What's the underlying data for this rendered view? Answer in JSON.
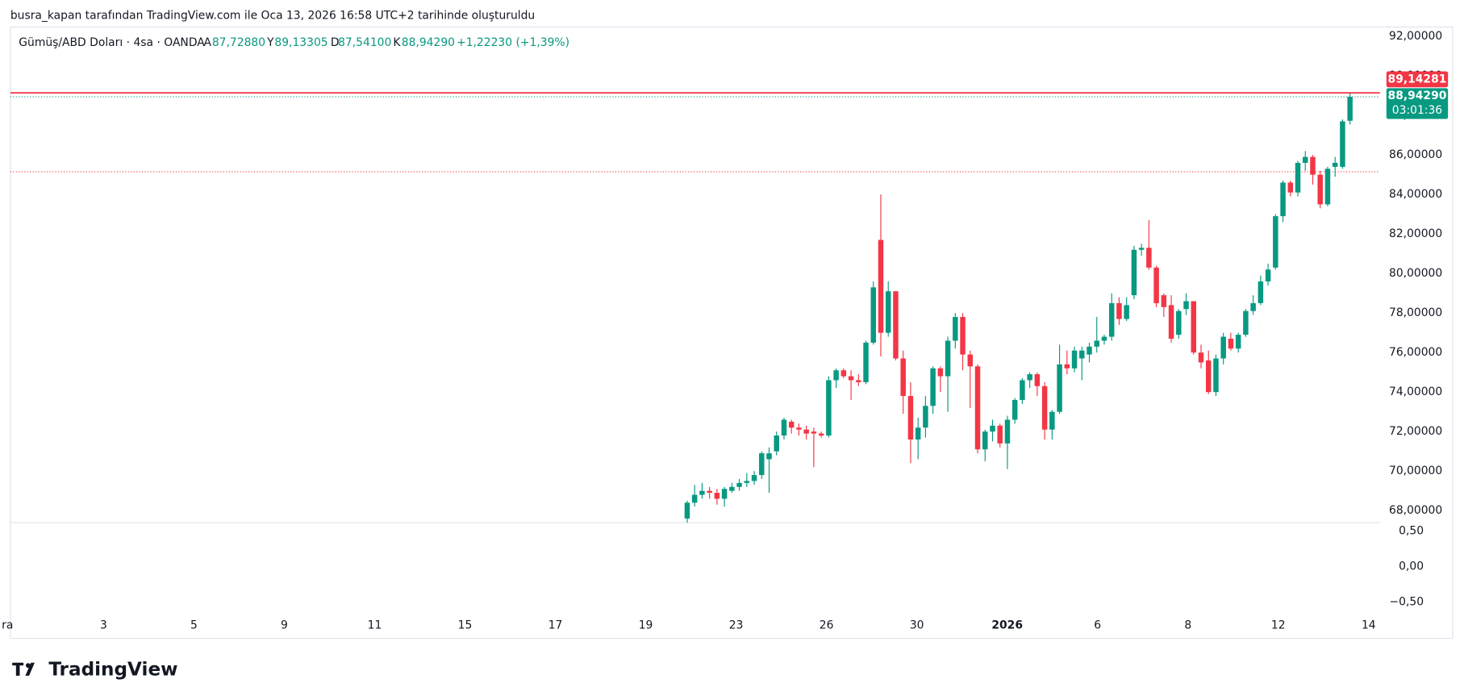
{
  "header": {
    "attribution": "busra_kapan tarafından TradingView.com ile Oca 13, 2026 16:58 UTC+2 tarihinde oluşturuldu",
    "symbol": "Gümüş/ABD Doları · 4sa · OANDA",
    "open_label": "A",
    "open": "87,72880",
    "high_label": "Y",
    "high": "89,13305",
    "low_label": "D",
    "low": "87,54100",
    "close_label": "K",
    "close": "88,94290",
    "change": "+1,22230 (+1,39%)"
  },
  "logo": "TradingView",
  "chart_data": {
    "type": "candlestick",
    "up_color": "#089981",
    "down_color": "#f23645",
    "ylim": [
      66.9,
      92.5
    ],
    "yticks": [
      {
        "value": 68,
        "label": "68,00000"
      },
      {
        "value": 70,
        "label": "70,00000"
      },
      {
        "value": 72,
        "label": "72,00000"
      },
      {
        "value": 74,
        "label": "74,00000"
      },
      {
        "value": 76,
        "label": "76,00000"
      },
      {
        "value": 78,
        "label": "78,00000"
      },
      {
        "value": 80,
        "label": "80,00000"
      },
      {
        "value": 82,
        "label": "82,00000"
      },
      {
        "value": 84,
        "label": "84,00000"
      },
      {
        "value": 86,
        "label": "86,00000"
      },
      {
        "value": 88,
        "label": "88,00000"
      },
      {
        "value": 90,
        "label": "90,00000"
      },
      {
        "value": 92,
        "label": "92,00000"
      }
    ],
    "xticks": [
      "ra",
      "3",
      "5",
      "9",
      "11",
      "15",
      "17",
      "19",
      "23",
      "26",
      "30",
      "2026",
      "6",
      "8",
      "12",
      "14"
    ],
    "last_price": {
      "value": 88.9429,
      "label": "88,94290"
    },
    "high_line": {
      "value": 89.14281,
      "label": "89,14281"
    },
    "countdown": "03:01:36",
    "reference_line": 85.15,
    "candles": [
      [
        67.6,
        68.5,
        67.3,
        68.4
      ],
      [
        68.4,
        69.3,
        68.2,
        68.8
      ],
      [
        68.8,
        69.4,
        68.6,
        69.0
      ],
      [
        69.0,
        69.2,
        68.6,
        68.9
      ],
      [
        68.9,
        69.1,
        68.3,
        68.6
      ],
      [
        68.6,
        69.2,
        68.2,
        69.1
      ],
      [
        69.0,
        69.4,
        68.9,
        69.2
      ],
      [
        69.2,
        69.6,
        69.0,
        69.4
      ],
      [
        69.4,
        69.9,
        69.2,
        69.5
      ],
      [
        69.5,
        70.0,
        69.3,
        69.8
      ],
      [
        69.8,
        71.0,
        69.6,
        70.9
      ],
      [
        70.6,
        71.2,
        68.9,
        70.9
      ],
      [
        71.0,
        72.0,
        70.8,
        71.8
      ],
      [
        71.8,
        72.7,
        71.6,
        72.6
      ],
      [
        72.5,
        72.6,
        71.9,
        72.2
      ],
      [
        72.2,
        72.4,
        71.8,
        72.1
      ],
      [
        72.1,
        72.3,
        71.6,
        71.9
      ],
      [
        72.0,
        72.2,
        70.2,
        71.9
      ],
      [
        71.9,
        72.0,
        71.7,
        71.8
      ],
      [
        71.8,
        74.8,
        71.7,
        74.6
      ],
      [
        74.6,
        75.2,
        74.2,
        75.1
      ],
      [
        75.1,
        75.2,
        74.7,
        74.8
      ],
      [
        74.8,
        75.1,
        73.6,
        74.6
      ],
      [
        74.6,
        74.9,
        74.3,
        74.5
      ],
      [
        74.5,
        76.6,
        74.4,
        76.5
      ],
      [
        76.5,
        79.6,
        76.4,
        79.3
      ],
      [
        81.7,
        84.0,
        75.8,
        77.0
      ],
      [
        77.0,
        79.6,
        76.8,
        79.1
      ],
      [
        79.1,
        79.1,
        75.6,
        75.7
      ],
      [
        75.7,
        76.1,
        72.9,
        73.8
      ],
      [
        73.8,
        74.5,
        70.4,
        71.6
      ],
      [
        71.6,
        72.7,
        70.6,
        72.2
      ],
      [
        72.2,
        73.8,
        71.7,
        73.3
      ],
      [
        73.3,
        75.3,
        72.9,
        75.2
      ],
      [
        75.2,
        75.3,
        74.0,
        74.8
      ],
      [
        74.8,
        76.8,
        73.0,
        76.6
      ],
      [
        76.6,
        78.0,
        76.2,
        77.8
      ],
      [
        77.8,
        78.0,
        75.1,
        75.9
      ],
      [
        75.9,
        76.1,
        73.2,
        75.3
      ],
      [
        75.3,
        75.4,
        70.9,
        71.1
      ],
      [
        71.1,
        72.1,
        70.5,
        72.0
      ],
      [
        72.0,
        72.6,
        71.5,
        72.3
      ],
      [
        72.3,
        72.4,
        71.2,
        71.4
      ],
      [
        71.4,
        72.8,
        70.1,
        72.6
      ],
      [
        72.6,
        73.7,
        72.4,
        73.6
      ],
      [
        73.6,
        74.7,
        73.4,
        74.6
      ],
      [
        74.6,
        75.0,
        74.2,
        74.9
      ],
      [
        74.9,
        75.0,
        73.8,
        74.3
      ],
      [
        74.3,
        74.5,
        71.6,
        72.1
      ],
      [
        72.1,
        73.1,
        71.6,
        73.0
      ],
      [
        73.0,
        76.4,
        72.9,
        75.4
      ],
      [
        75.4,
        76.1,
        74.9,
        75.2
      ],
      [
        75.2,
        76.3,
        75.0,
        76.1
      ],
      [
        75.7,
        76.3,
        74.6,
        76.1
      ],
      [
        75.9,
        76.5,
        75.5,
        76.3
      ],
      [
        76.3,
        77.8,
        76.0,
        76.6
      ],
      [
        76.6,
        76.9,
        76.4,
        76.8
      ],
      [
        76.8,
        79.0,
        76.6,
        78.5
      ],
      [
        78.5,
        78.8,
        77.4,
        77.7
      ],
      [
        77.7,
        78.8,
        77.6,
        78.4
      ],
      [
        78.9,
        81.4,
        78.7,
        81.2
      ],
      [
        81.2,
        81.5,
        80.9,
        81.3
      ],
      [
        81.3,
        82.7,
        80.2,
        80.3
      ],
      [
        80.3,
        80.4,
        78.3,
        78.5
      ],
      [
        78.9,
        79.0,
        77.8,
        78.3
      ],
      [
        78.4,
        78.9,
        76.5,
        76.7
      ],
      [
        76.9,
        78.2,
        76.7,
        78.1
      ],
      [
        78.2,
        79.0,
        77.9,
        78.6
      ],
      [
        78.6,
        78.6,
        75.9,
        76.0
      ],
      [
        76.0,
        76.4,
        75.2,
        75.5
      ],
      [
        75.6,
        76.1,
        73.9,
        74.0
      ],
      [
        74.0,
        75.9,
        73.8,
        75.7
      ],
      [
        75.7,
        77.0,
        75.4,
        76.8
      ],
      [
        76.7,
        77.0,
        76.1,
        76.2
      ],
      [
        76.2,
        77.0,
        76.0,
        76.9
      ],
      [
        76.9,
        78.2,
        76.8,
        78.1
      ],
      [
        78.1,
        78.9,
        77.9,
        78.5
      ],
      [
        78.5,
        79.9,
        78.4,
        79.6
      ],
      [
        79.6,
        80.5,
        79.4,
        80.2
      ],
      [
        80.3,
        83.0,
        80.2,
        82.9
      ],
      [
        82.9,
        84.7,
        82.6,
        84.6
      ],
      [
        84.6,
        84.7,
        83.9,
        84.1
      ],
      [
        84.1,
        85.7,
        83.9,
        85.6
      ],
      [
        85.6,
        86.2,
        85.2,
        85.9
      ],
      [
        85.9,
        86.0,
        84.5,
        85.0
      ],
      [
        85.0,
        85.2,
        83.3,
        83.5
      ],
      [
        83.5,
        85.4,
        83.4,
        85.3
      ],
      [
        85.4,
        85.9,
        84.9,
        85.6
      ],
      [
        85.4,
        87.8,
        85.3,
        87.7
      ],
      [
        87.7288,
        89.13305,
        87.541,
        88.9429
      ]
    ],
    "lower_pane": {
      "ylim": [
        -0.7,
        0.62
      ],
      "yticks": [
        {
          "value": -0.5,
          "label": "−0,50"
        },
        {
          "value": 0,
          "label": "0,00"
        },
        {
          "value": 0.5,
          "label": "0,50"
        }
      ]
    }
  }
}
